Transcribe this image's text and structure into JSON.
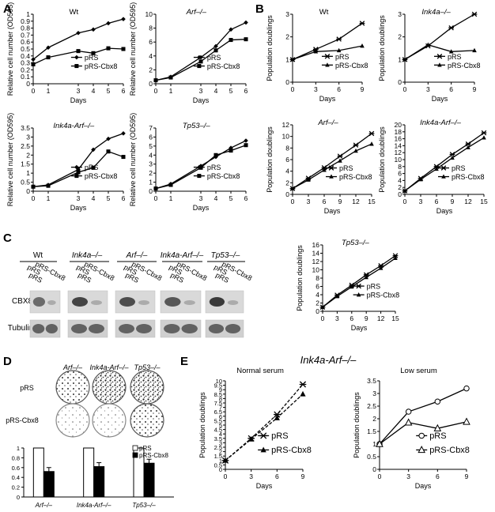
{
  "figure": {
    "panel_letters": [
      "A",
      "B",
      "C",
      "D",
      "E"
    ]
  },
  "chart_data": [
    {
      "id": "A1",
      "type": "line",
      "title": "Wt",
      "title_italic": false,
      "xlabel": "Days",
      "ylabel": "Relative cell number (OD595)",
      "x": [
        0,
        1,
        3,
        4,
        5,
        6
      ],
      "xlim": [
        0,
        6
      ],
      "ylim": [
        0,
        1
      ],
      "yticks": [
        0,
        0.1,
        0.2,
        0.3,
        0.4,
        0.5,
        0.6,
        0.7,
        0.8,
        0.9,
        1
      ],
      "xticks": [
        0,
        1,
        3,
        4,
        5,
        6
      ],
      "legend": "lower-right",
      "series": [
        {
          "name": "pRS",
          "marker": "diamond",
          "values": [
            0.35,
            0.52,
            0.73,
            0.78,
            0.87,
            0.93
          ]
        },
        {
          "name": "pRS-Cbx8",
          "marker": "square",
          "values": [
            0.28,
            0.38,
            0.47,
            0.44,
            0.51,
            0.5
          ]
        }
      ]
    },
    {
      "id": "A2",
      "type": "line",
      "title": "Arf–/–",
      "title_italic": true,
      "xlabel": "Days",
      "ylabel": "Relative cell number (OD595)",
      "x": [
        0,
        1,
        3,
        4,
        5,
        6
      ],
      "xlim": [
        0,
        6
      ],
      "ylim": [
        0,
        10
      ],
      "yticks": [
        0,
        2,
        4,
        6,
        8,
        10
      ],
      "xticks": [
        0,
        1,
        3,
        4,
        5,
        6
      ],
      "legend": "lower-right",
      "series": [
        {
          "name": "pRS",
          "marker": "diamond",
          "values": [
            0.5,
            1.0,
            3.8,
            5.4,
            7.8,
            8.8
          ]
        },
        {
          "name": "pRS-Cbx8",
          "marker": "square",
          "values": [
            0.5,
            0.9,
            3.2,
            4.8,
            6.3,
            6.4
          ]
        }
      ]
    },
    {
      "id": "A3",
      "type": "line",
      "title": "Ink4a-Arf–/–",
      "title_italic": true,
      "xlabel": "Days",
      "ylabel": "Relative cell number (OD595)",
      "x": [
        0,
        1,
        3,
        4,
        5,
        6
      ],
      "xlim": [
        0,
        6
      ],
      "ylim": [
        0,
        3.5
      ],
      "yticks": [
        0,
        0.5,
        1,
        1.5,
        2,
        2.5,
        3,
        3.5
      ],
      "xticks": [
        0,
        1,
        3,
        4,
        5,
        6
      ],
      "legend": "lower-right",
      "series": [
        {
          "name": "pRS",
          "marker": "diamond",
          "values": [
            0.25,
            0.35,
            1.2,
            2.3,
            2.9,
            3.2
          ]
        },
        {
          "name": "pRS-Cbx8",
          "marker": "square",
          "values": [
            0.25,
            0.3,
            1.05,
            1.3,
            2.2,
            1.9
          ]
        }
      ]
    },
    {
      "id": "A4",
      "type": "line",
      "title": "Tp53–/–",
      "title_italic": true,
      "xlabel": "Days",
      "ylabel": "Relative cell number (OD595)",
      "x": [
        0,
        1,
        3,
        4,
        5,
        6
      ],
      "xlim": [
        0,
        6
      ],
      "ylim": [
        0,
        7
      ],
      "yticks": [
        0,
        1,
        2,
        3,
        4,
        5,
        6,
        7
      ],
      "xticks": [
        0,
        1,
        3,
        4,
        5,
        6
      ],
      "legend": "lower-right",
      "series": [
        {
          "name": "pRS",
          "marker": "diamond",
          "values": [
            0.3,
            0.8,
            2.8,
            3.8,
            4.8,
            5.6
          ]
        },
        {
          "name": "pRS-Cbx8",
          "marker": "square",
          "values": [
            0.3,
            0.7,
            2.6,
            4.0,
            4.5,
            5.1
          ]
        }
      ]
    },
    {
      "id": "B1",
      "type": "line",
      "title": "Wt",
      "title_italic": false,
      "xlabel": "Days",
      "ylabel": "Population doublings",
      "x": [
        0,
        3,
        6,
        9
      ],
      "xlim": [
        0,
        9
      ],
      "ylim": [
        0,
        3
      ],
      "yticks": [
        0,
        1,
        2,
        3
      ],
      "xticks": [
        0,
        3,
        6,
        9
      ],
      "legend": "lower-right",
      "series": [
        {
          "name": "pRS",
          "marker": "star",
          "values": [
            1.0,
            1.45,
            1.9,
            2.6
          ]
        },
        {
          "name": "pRS-Cbx8",
          "marker": "triangle",
          "values": [
            1.0,
            1.35,
            1.4,
            1.6
          ]
        }
      ]
    },
    {
      "id": "B2",
      "type": "line",
      "title": "Ink4a–/–",
      "title_italic": true,
      "xlabel": "Days",
      "ylabel": "Population doublings",
      "x": [
        0,
        3,
        6,
        9
      ],
      "xlim": [
        0,
        9
      ],
      "ylim": [
        0,
        3
      ],
      "yticks": [
        0,
        1,
        2,
        3
      ],
      "xticks": [
        0,
        3,
        6,
        9
      ],
      "legend": "lower-right",
      "series": [
        {
          "name": "pRS",
          "marker": "star",
          "values": [
            1.0,
            1.6,
            2.4,
            3.0
          ]
        },
        {
          "name": "pRS-Cbx8",
          "marker": "triangle",
          "values": [
            1.0,
            1.65,
            1.35,
            1.4
          ]
        }
      ]
    },
    {
      "id": "B3",
      "type": "line",
      "title": "Arf–/–",
      "title_italic": true,
      "xlabel": "Days",
      "ylabel": "Population doublings",
      "x": [
        0,
        3,
        6,
        9,
        12,
        15
      ],
      "xlim": [
        0,
        15
      ],
      "ylim": [
        0,
        12
      ],
      "yticks": [
        0,
        2,
        4,
        6,
        8,
        10,
        12
      ],
      "xticks": [
        0,
        3,
        6,
        9,
        12,
        15
      ],
      "legend": "lower-right",
      "series": [
        {
          "name": "pRS",
          "marker": "star",
          "values": [
            1.0,
            2.8,
            4.6,
            6.6,
            8.5,
            10.5
          ]
        },
        {
          "name": "pRS-Cbx8",
          "marker": "triangle",
          "values": [
            1.0,
            2.5,
            4.2,
            5.8,
            7.5,
            8.7
          ]
        }
      ]
    },
    {
      "id": "B4",
      "type": "line",
      "title": "Ink4a-Arf–/–",
      "title_italic": true,
      "xlabel": "Days",
      "ylabel": "Population doublings",
      "x": [
        0,
        3,
        6,
        9,
        12,
        15
      ],
      "xlim": [
        0,
        15
      ],
      "ylim": [
        0,
        20
      ],
      "yticks": [
        0,
        2,
        4,
        6,
        8,
        10,
        12,
        14,
        16,
        18,
        20
      ],
      "xticks": [
        0,
        3,
        6,
        9,
        12,
        15
      ],
      "legend": "lower-right",
      "series": [
        {
          "name": "pRS",
          "marker": "star",
          "values": [
            1.0,
            4.6,
            8.0,
            11.5,
            14.5,
            17.7
          ]
        },
        {
          "name": "pRS-Cbx8",
          "marker": "triangle",
          "values": [
            1.0,
            4.3,
            7.3,
            10.5,
            13.5,
            16.3
          ]
        }
      ]
    },
    {
      "id": "B5",
      "type": "line",
      "title": "Tp53–/–",
      "title_italic": true,
      "xlabel": "Days",
      "ylabel": "Population doublings",
      "x": [
        0,
        3,
        6,
        9,
        12,
        15
      ],
      "xlim": [
        0,
        15
      ],
      "ylim": [
        0,
        16
      ],
      "yticks": [
        0,
        2,
        4,
        6,
        8,
        10,
        12,
        14,
        16
      ],
      "xticks": [
        0,
        3,
        6,
        9,
        12,
        15
      ],
      "legend": "lower-right",
      "series": [
        {
          "name": "pRS",
          "marker": "star",
          "values": [
            1.0,
            3.9,
            6.3,
            8.8,
            11.0,
            13.4
          ]
        },
        {
          "name": "pRS-Cbx8",
          "marker": "triangle",
          "values": [
            1.0,
            3.6,
            5.9,
            8.2,
            10.4,
            12.8
          ]
        }
      ]
    },
    {
      "id": "D-bar",
      "type": "bar",
      "categories": [
        "Arf–/–",
        "Ink4a-Arf–/–",
        "Tp53–/–"
      ],
      "ylim": [
        0,
        1
      ],
      "yticks": [
        0,
        0.2,
        0.4,
        0.6,
        0.8,
        1
      ],
      "legend": "top-right",
      "series": [
        {
          "name": "pRS",
          "fill": "#ffffff",
          "values": [
            1.0,
            1.0,
            1.0
          ]
        },
        {
          "name": "pRS-Cbx8",
          "fill": "#000000",
          "values": [
            0.52,
            0.62,
            0.69
          ]
        }
      ]
    },
    {
      "id": "E1",
      "type": "line",
      "title": "Normal serum",
      "title_italic": false,
      "xlabel": "Days",
      "ylabel": "Population doublings",
      "x": [
        0,
        3,
        6,
        9
      ],
      "xlim": [
        0,
        9
      ],
      "ylim": [
        0,
        10
      ],
      "yticks": [
        0,
        0.5,
        1,
        1.5,
        2,
        2.5,
        3,
        3.5,
        4,
        4.5,
        5,
        5.5,
        6,
        6.5,
        7,
        7.5,
        8,
        8.5,
        9,
        9.5,
        10
      ],
      "ytick_labels": [
        "0",
        "0.5",
        "1",
        "1.5",
        "2",
        "2.5",
        "3",
        "3.5",
        "4",
        "4.5",
        "5",
        "5.5",
        "6",
        "6.5",
        "7",
        "7.5",
        "8",
        "8.5",
        "9",
        "9.5",
        "10"
      ],
      "xticks": [
        0,
        3,
        6,
        9
      ],
      "legend": "lower-right",
      "series": [
        {
          "name": "pRS",
          "marker": "star",
          "dashed": true,
          "values": [
            1.0,
            3.5,
            6.2,
            9.6
          ]
        },
        {
          "name": "pRS-Cbx8",
          "marker": "triangle",
          "dashed": true,
          "values": [
            1.0,
            3.4,
            5.8,
            8.5
          ]
        }
      ]
    },
    {
      "id": "E2",
      "type": "line",
      "title": "Low serum",
      "title_italic": false,
      "xlabel": "Days",
      "ylabel": "Population doublings",
      "x": [
        0,
        3,
        6,
        9
      ],
      "xlim": [
        0,
        9
      ],
      "ylim": [
        0,
        3.5
      ],
      "yticks": [
        0,
        0.5,
        1,
        1.5,
        2,
        2.5,
        3,
        3.5
      ],
      "xticks": [
        0,
        3,
        6,
        9
      ],
      "legend": "lower-right",
      "series": [
        {
          "name": "pRS",
          "marker": "circle",
          "values": [
            1.0,
            2.28,
            2.68,
            3.2
          ]
        },
        {
          "name": "pRS-Cbx8",
          "marker": "triangle-open",
          "values": [
            1.0,
            1.85,
            1.62,
            1.88
          ]
        }
      ]
    }
  ],
  "panel_c": {
    "genotypes": [
      "Wt",
      "Ink4a–/–",
      "Arf–/–",
      "Ink4a-Arf–/–",
      "Tp53–/–"
    ],
    "lane_labels": [
      "pRS",
      "pRS-Cbx8"
    ],
    "row_labels": [
      "CBX8",
      "Tubulin"
    ]
  },
  "panel_d": {
    "genotypes": [
      "Arf–/–",
      "Ink4a-Arf–/–",
      "Tp53–/–"
    ],
    "row_labels": [
      "pRS",
      "pRS-Cbx8"
    ]
  },
  "panel_e": {
    "title": "Ink4a-Arf–/–"
  }
}
